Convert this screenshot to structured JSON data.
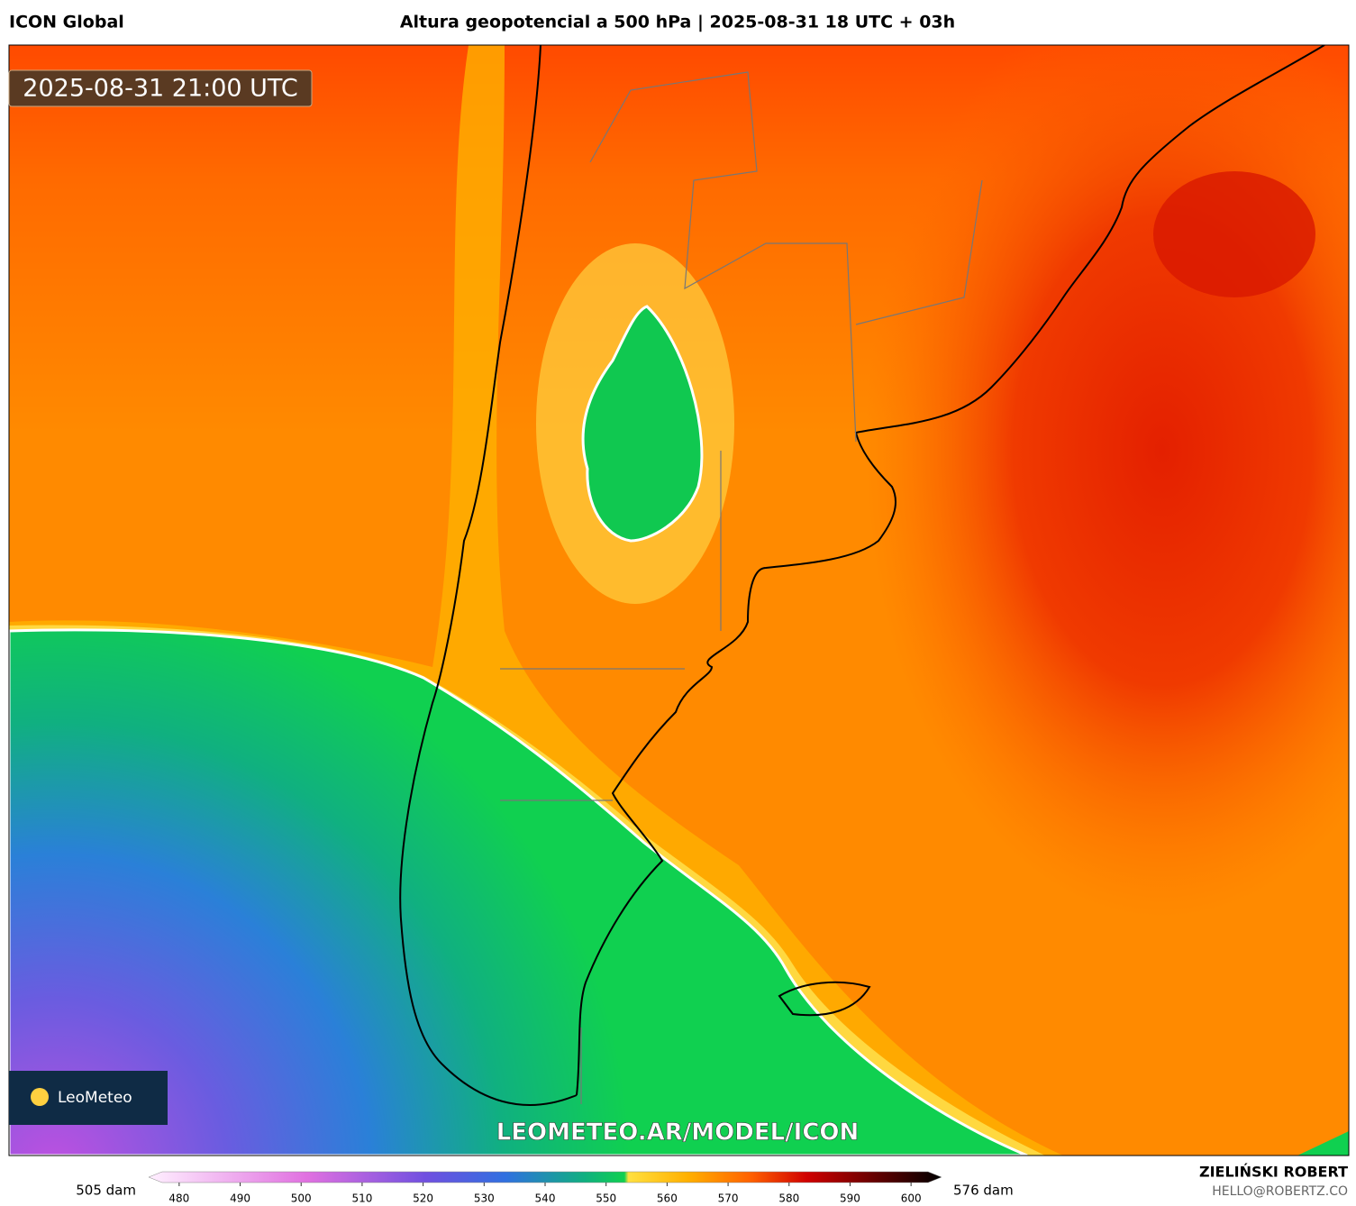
{
  "header": {
    "model": "ICON Global",
    "title": "Altura geopotencial a 500 hPa | 2025-08-31 18 UTC + 03h"
  },
  "map": {
    "valid_time": "2025-08-31 21:00 UTC",
    "watermark": "LEOMETEO.AR/MODEL/ICON",
    "logo": "LeoMeteo"
  },
  "colorbar": {
    "range": [
      475,
      605
    ],
    "ticks": [
      480,
      490,
      500,
      510,
      520,
      530,
      540,
      550,
      560,
      570,
      580,
      590,
      600
    ],
    "min_label": "505 dam",
    "max_label": "576 dam"
  },
  "footer": {
    "author": "ZIELIŃSKI ROBERT",
    "contact": "HELLO@ROBERTZ.CO"
  }
}
